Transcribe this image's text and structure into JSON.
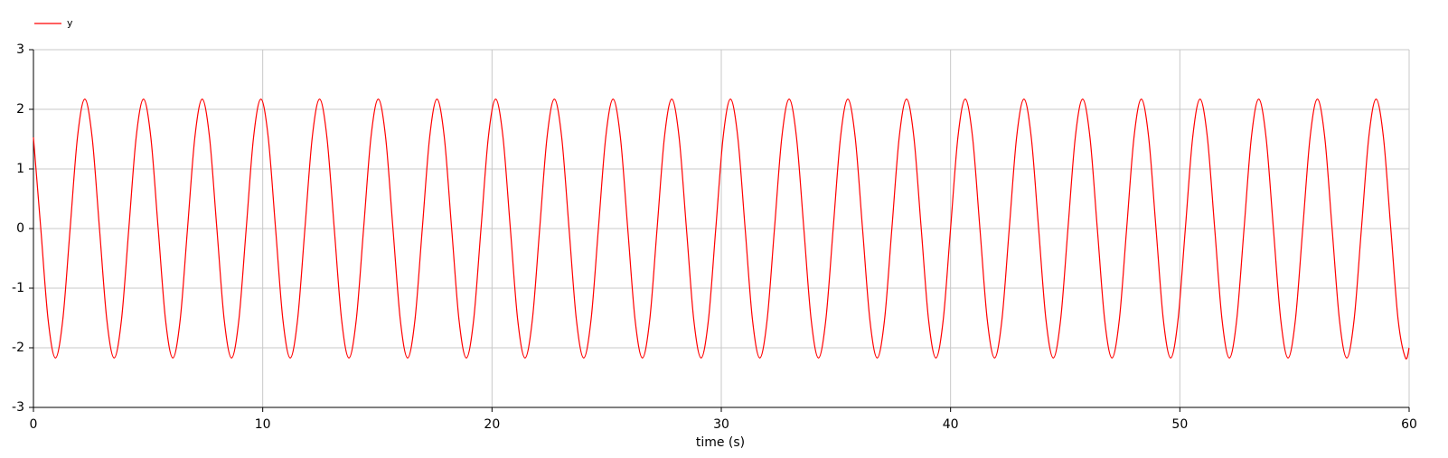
{
  "chart_data": {
    "type": "line",
    "x_label": "time (s)",
    "legend": "top-left",
    "grid": true,
    "xlim": [
      0,
      60
    ],
    "xticks": [
      0,
      10,
      20,
      30,
      40,
      50,
      60
    ],
    "ylim": [
      -3,
      3
    ],
    "yticks": [
      -3,
      -2,
      -1,
      0,
      1,
      2,
      3
    ],
    "x": [
      0,
      0.32,
      0.64,
      0.96,
      1.28,
      1.6,
      1.92,
      2.24,
      2.56,
      2.88,
      3.2,
      3.52,
      3.84,
      4.16,
      4.48,
      4.8,
      5.12,
      5.44,
      5.76,
      6.08,
      6.4,
      6.72,
      7.04,
      7.36,
      7.68,
      8,
      8.32,
      8.64,
      8.96,
      9.28,
      9.6,
      9.92,
      10.24,
      10.56,
      10.88,
      11.2,
      11.52,
      11.84,
      12.16,
      12.48,
      12.8,
      13.12,
      13.44,
      13.76,
      14.08,
      14.4,
      14.72,
      15.04,
      15.36,
      15.68,
      16,
      16.32,
      16.64,
      16.96,
      17.28,
      17.6,
      17.92,
      18.24,
      18.56,
      18.88,
      19.2,
      19.52,
      19.84,
      20.16,
      20.48,
      20.8,
      21.12,
      21.44,
      21.76,
      22.08,
      22.4,
      22.72,
      23.04,
      23.36,
      23.68,
      24,
      24.32,
      24.64,
      24.96,
      25.28,
      25.6,
      25.92,
      26.24,
      26.56,
      26.88,
      27.2,
      27.52,
      27.84,
      28.16,
      28.48,
      28.8,
      29.12,
      29.44,
      29.76,
      30.08,
      30.4,
      30.72,
      31.04,
      31.36,
      31.68,
      32,
      32.32,
      32.64,
      32.96,
      33.28,
      33.6,
      33.92,
      34.24,
      34.56,
      34.88,
      35.2,
      35.52,
      35.84,
      36.16,
      36.48,
      36.8,
      37.12,
      37.44,
      37.76,
      38.08,
      38.4,
      38.72,
      39.04,
      39.36,
      39.68,
      40,
      40.32,
      40.64,
      40.96,
      41.28,
      41.6,
      41.92,
      42.24,
      42.56,
      42.88,
      43.2,
      43.52,
      43.84,
      44.16,
      44.48,
      44.8,
      45.12,
      45.44,
      45.76,
      46.08,
      46.4,
      46.72,
      47.04,
      47.36,
      47.68,
      48,
      48.32,
      48.64,
      48.96,
      49.28,
      49.6,
      49.92,
      50.24,
      50.56,
      50.88,
      51.2,
      51.52,
      51.84,
      52.16,
      52.48,
      52.8,
      53.12,
      53.44,
      53.76,
      54.08,
      54.4,
      54.72,
      55.04,
      55.36,
      55.68,
      56,
      56.32,
      56.64,
      56.96,
      57.28,
      57.6,
      57.92,
      58.24,
      58.56,
      58.88,
      59.2,
      59.52,
      59.84,
      60
    ],
    "series": [
      {
        "name": "y",
        "color": "#ff0000",
        "values": [
          1.53,
          0,
          -1.53,
          -2.17,
          -1.53,
          0,
          1.53,
          2.17,
          1.53,
          0,
          -1.53,
          -2.17,
          -1.53,
          0,
          1.53,
          2.17,
          1.53,
          0,
          -1.53,
          -2.17,
          -1.53,
          0,
          1.53,
          2.17,
          1.53,
          0,
          -1.53,
          -2.17,
          -1.53,
          0,
          1.53,
          2.17,
          1.53,
          0,
          -1.53,
          -2.17,
          -1.53,
          0,
          1.53,
          2.17,
          1.53,
          0,
          -1.53,
          -2.17,
          -1.53,
          0,
          1.53,
          2.17,
          1.53,
          0,
          -1.53,
          -2.17,
          -1.53,
          0,
          1.53,
          2.17,
          1.53,
          0,
          -1.53,
          -2.17,
          -1.53,
          0,
          1.53,
          2.17,
          1.53,
          0,
          -1.53,
          -2.17,
          -1.53,
          0,
          1.53,
          2.17,
          1.53,
          0,
          -1.53,
          -2.17,
          -1.53,
          0,
          1.53,
          2.17,
          1.53,
          0,
          -1.53,
          -2.17,
          -1.53,
          0,
          1.53,
          2.17,
          1.53,
          0,
          -1.53,
          -2.17,
          -1.53,
          0,
          1.53,
          2.17,
          1.53,
          0,
          -1.53,
          -2.17,
          -1.53,
          0,
          1.53,
          2.17,
          1.53,
          0,
          -1.53,
          -2.17,
          -1.53,
          0,
          1.53,
          2.17,
          1.53,
          0,
          -1.53,
          -2.17,
          -1.53,
          0,
          1.53,
          2.17,
          1.53,
          0,
          -1.53,
          -2.17,
          -1.53,
          0,
          1.53,
          2.17,
          1.53,
          0,
          -1.53,
          -2.17,
          -1.53,
          0,
          1.53,
          2.17,
          1.53,
          0,
          -1.53,
          -2.17,
          -1.53,
          0,
          1.53,
          2.17,
          1.53,
          0,
          -1.53,
          -2.17,
          -1.53,
          0,
          1.53,
          2.17,
          1.53,
          0,
          -1.53,
          -2.17,
          -1.53,
          0,
          1.53,
          2.17,
          1.53,
          0,
          -1.53,
          -2.17,
          -1.53,
          0,
          1.53,
          2.17,
          1.53,
          0,
          -1.53,
          -2.17,
          -1.53,
          0,
          1.53,
          2.17,
          1.53,
          0,
          -1.53,
          -2.17,
          -1.53,
          0,
          1.53,
          2.17,
          1.53,
          0,
          -1.53,
          -2.17,
          -2.0
        ]
      }
    ]
  }
}
